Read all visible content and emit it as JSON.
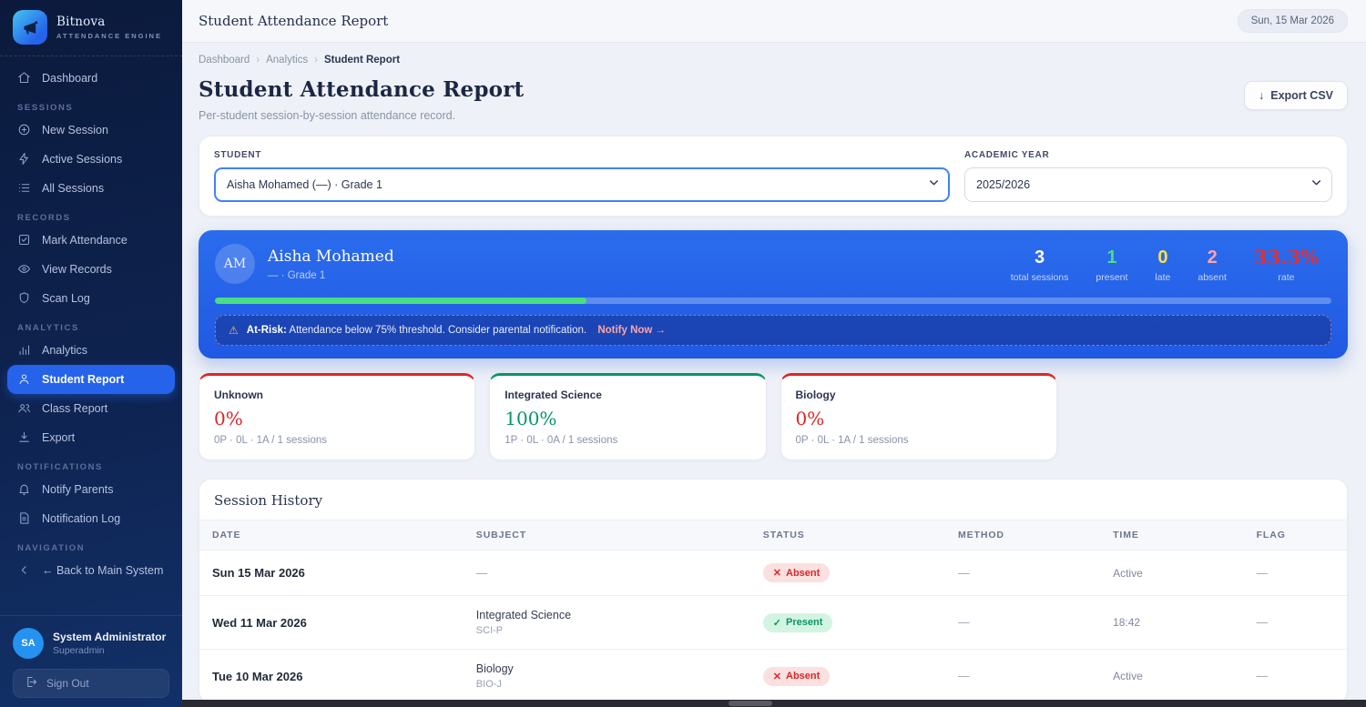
{
  "brand": {
    "name": "Bitnova",
    "tagline": "ATTENDANCE ENGINE",
    "icon": "megaphone"
  },
  "sidebar": {
    "sections": [
      {
        "label": "",
        "items": [
          {
            "icon": "home",
            "label": "Dashboard"
          }
        ]
      },
      {
        "label": "SESSIONS",
        "items": [
          {
            "icon": "plus-circle",
            "label": "New Session"
          },
          {
            "icon": "bolt",
            "label": "Active Sessions"
          },
          {
            "icon": "list",
            "label": "All Sessions"
          }
        ]
      },
      {
        "label": "RECORDS",
        "items": [
          {
            "icon": "check-square",
            "label": "Mark Attendance"
          },
          {
            "icon": "eye",
            "label": "View Records"
          },
          {
            "icon": "shield",
            "label": "Scan Log"
          }
        ]
      },
      {
        "label": "ANALYTICS",
        "items": [
          {
            "icon": "chart",
            "label": "Analytics"
          },
          {
            "icon": "user",
            "label": "Student Report",
            "active": true
          },
          {
            "icon": "users",
            "label": "Class Report"
          },
          {
            "icon": "download",
            "label": "Export"
          }
        ]
      },
      {
        "label": "NOTIFICATIONS",
        "items": [
          {
            "icon": "bell",
            "label": "Notify Parents"
          },
          {
            "icon": "file-text",
            "label": "Notification Log"
          }
        ]
      },
      {
        "label": "NAVIGATION",
        "items": [
          {
            "icon": "chevron-left",
            "label": "← Back to Main System"
          }
        ]
      }
    ],
    "user": {
      "initials": "SA",
      "name": "System Administrator",
      "role": "Superadmin",
      "signout_label": "Sign Out"
    }
  },
  "topbar": {
    "title": "Student Attendance Report",
    "date": "Sun, 15 Mar 2026"
  },
  "page": {
    "breadcrumb": [
      "Dashboard",
      "Analytics",
      "Student Report"
    ],
    "breadcrumb_sep": "›",
    "title": "Student Attendance Report",
    "subtitle": "Per-student session-by-session attendance record.",
    "export_icon": "↓",
    "export_label": "Export CSV"
  },
  "filters": {
    "student": {
      "label": "STUDENT",
      "value": "Aisha Mohamed (—) · Grade 1"
    },
    "year": {
      "label": "ACADEMIC YEAR",
      "value": "2025/2026"
    }
  },
  "summary": {
    "initials": "AM",
    "name": "Aisha Mohamed",
    "meta": "— · Grade 1",
    "stats": [
      {
        "value": "3",
        "label": "total sessions",
        "color": "#ffffff"
      },
      {
        "value": "1",
        "label": "present",
        "color": "#4ade80"
      },
      {
        "value": "0",
        "label": "late",
        "color": "#fde047"
      },
      {
        "value": "2",
        "label": "absent",
        "color": "#fda4af"
      },
      {
        "value": "33.3%",
        "label": "rate",
        "color": "#e62e2e",
        "rate": true
      }
    ],
    "progress_pct": 33.3,
    "progress_color": "#4ade80",
    "alert": {
      "icon": "⚠",
      "prefix": "At-Risk:",
      "text": "Attendance below 75% threshold. Consider parental notification.",
      "action": "Notify Now →"
    }
  },
  "subject_cards": [
    {
      "name": "Unknown",
      "rate": "0%",
      "detail": "0P · 0L · 1A / 1 sessions",
      "color": "#dc2626"
    },
    {
      "name": "Integrated Science",
      "rate": "100%",
      "detail": "1P · 0L · 0A / 1 sessions",
      "color": "#059669"
    },
    {
      "name": "Biology",
      "rate": "0%",
      "detail": "0P · 0L · 1A / 1 sessions",
      "color": "#dc2626"
    }
  ],
  "history": {
    "title": "Session History",
    "columns": [
      "DATE",
      "SUBJECT",
      "STATUS",
      "METHOD",
      "TIME",
      "FLAG"
    ],
    "rows": [
      {
        "date": "Sun 15 Mar 2026",
        "subject": "—",
        "subject_code": "",
        "status": "Absent",
        "status_type": "absent",
        "status_icon": "✕",
        "method": "—",
        "time": "Active",
        "flag": "—"
      },
      {
        "date": "Wed 11 Mar 2026",
        "subject": "Integrated Science",
        "subject_code": "SCI-P",
        "status": "Present",
        "status_type": "present",
        "status_icon": "✓",
        "method": "—",
        "time": "18:42",
        "flag": "—"
      },
      {
        "date": "Tue 10 Mar 2026",
        "subject": "Biology",
        "subject_code": "BIO-J",
        "status": "Absent",
        "status_type": "absent",
        "status_icon": "✕",
        "method": "—",
        "time": "Active",
        "flag": "—"
      }
    ]
  },
  "colors": {
    "accent": "#2563eb",
    "present": "#0d9463",
    "absent": "#dc2626",
    "late": "#fde047",
    "risk": "#e62e2e"
  }
}
